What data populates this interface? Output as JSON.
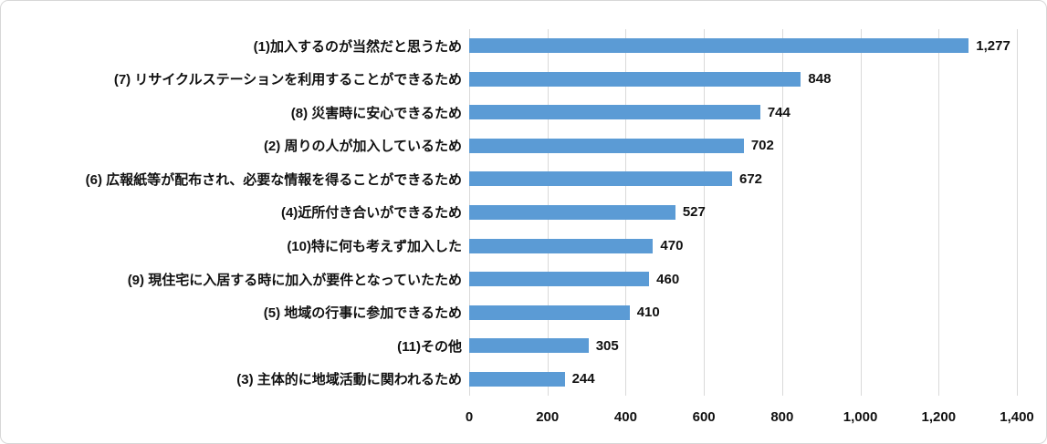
{
  "chart": {
    "background_color": "#FFFFFF",
    "frame_border_color": "#D7D7D7",
    "bar_color": "#5B9BD5",
    "gridline_color": "#D9D9D9",
    "text_color": "#111111"
  },
  "chart_data": {
    "type": "bar",
    "orientation": "horizontal",
    "title": "",
    "xlabel": "",
    "ylabel": "",
    "grid": true,
    "legend": false,
    "xlim": [
      0,
      1400
    ],
    "x_tick_values": [
      0,
      200,
      400,
      600,
      800,
      1000,
      1200,
      1400
    ],
    "x_tick_labels": [
      "0",
      "200",
      "400",
      "600",
      "800",
      "1,000",
      "1,200",
      "1,400"
    ],
    "categories": [
      "(1)加入するのが当然だと思うため",
      "(7) リサイクルステーションを利用することができるため",
      "(8) 災害時に安心できるため",
      "(2) 周りの人が加入しているため",
      "(6) 広報紙等が配布され、必要な情報を得ることができるため",
      "(4)近所付き合いができるため",
      "(10)特に何も考えず加入した",
      "(9) 現住宅に入居する時に加入が要件となっていたため",
      "(5) 地域の行事に参加できるため",
      "(11)その他",
      "(3) 主体的に地域活動に関われるため"
    ],
    "values": [
      1277,
      848,
      744,
      702,
      672,
      527,
      470,
      460,
      410,
      305,
      244
    ],
    "value_labels": [
      "1,277",
      "848",
      "744",
      "702",
      "672",
      "527",
      "470",
      "460",
      "410",
      "305",
      "244"
    ]
  }
}
